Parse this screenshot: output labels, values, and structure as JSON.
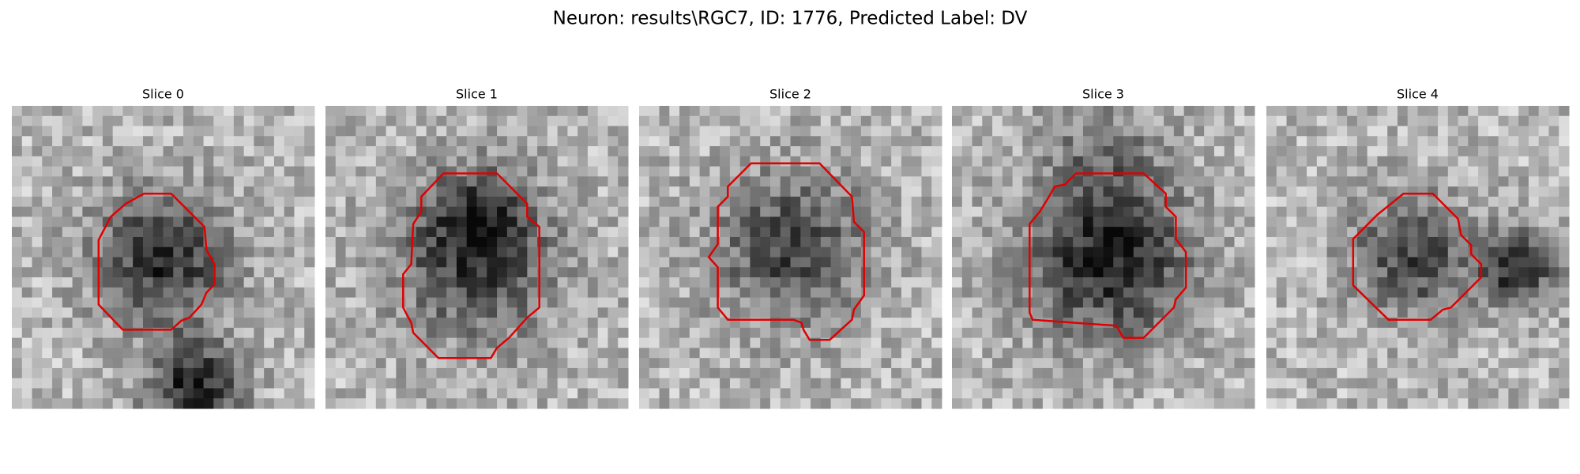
{
  "title": "Neuron: results\\RGC7, ID: 1776, Predicted Label: DV",
  "panels": [
    {
      "title": "Slice 0"
    },
    {
      "title": "Slice 1"
    },
    {
      "title": "Slice 2"
    },
    {
      "title": "Slice 3"
    },
    {
      "title": "Slice 4"
    }
  ]
}
